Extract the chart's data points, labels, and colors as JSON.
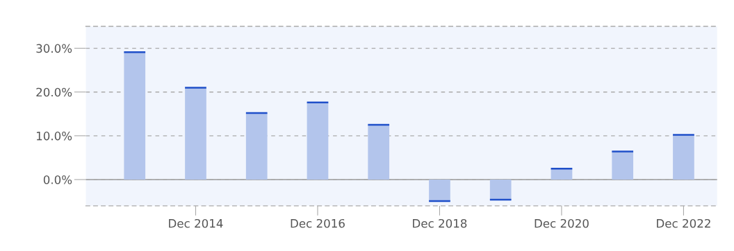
{
  "chart_data": {
    "type": "bar",
    "categories": [
      null,
      "Dec 2014",
      null,
      "Dec 2016",
      null,
      "Dec 2018",
      null,
      "Dec 2020",
      null,
      "Dec 2022"
    ],
    "series": [
      {
        "color": "#b3c5ec",
        "values": [
          29.1,
          21.0,
          15.2,
          17.6,
          12.5,
          -4.9,
          -4.6,
          2.5,
          6.4,
          10.2
        ]
      }
    ],
    "ylim": [
      -6,
      35
    ],
    "yticks": [
      {
        "value": 0,
        "label": "0.0%"
      },
      {
        "value": 10,
        "label": "10.0%"
      },
      {
        "value": 20,
        "label": "20.0%"
      },
      {
        "value": 30,
        "label": "30.0%"
      }
    ],
    "grid": "y"
  }
}
